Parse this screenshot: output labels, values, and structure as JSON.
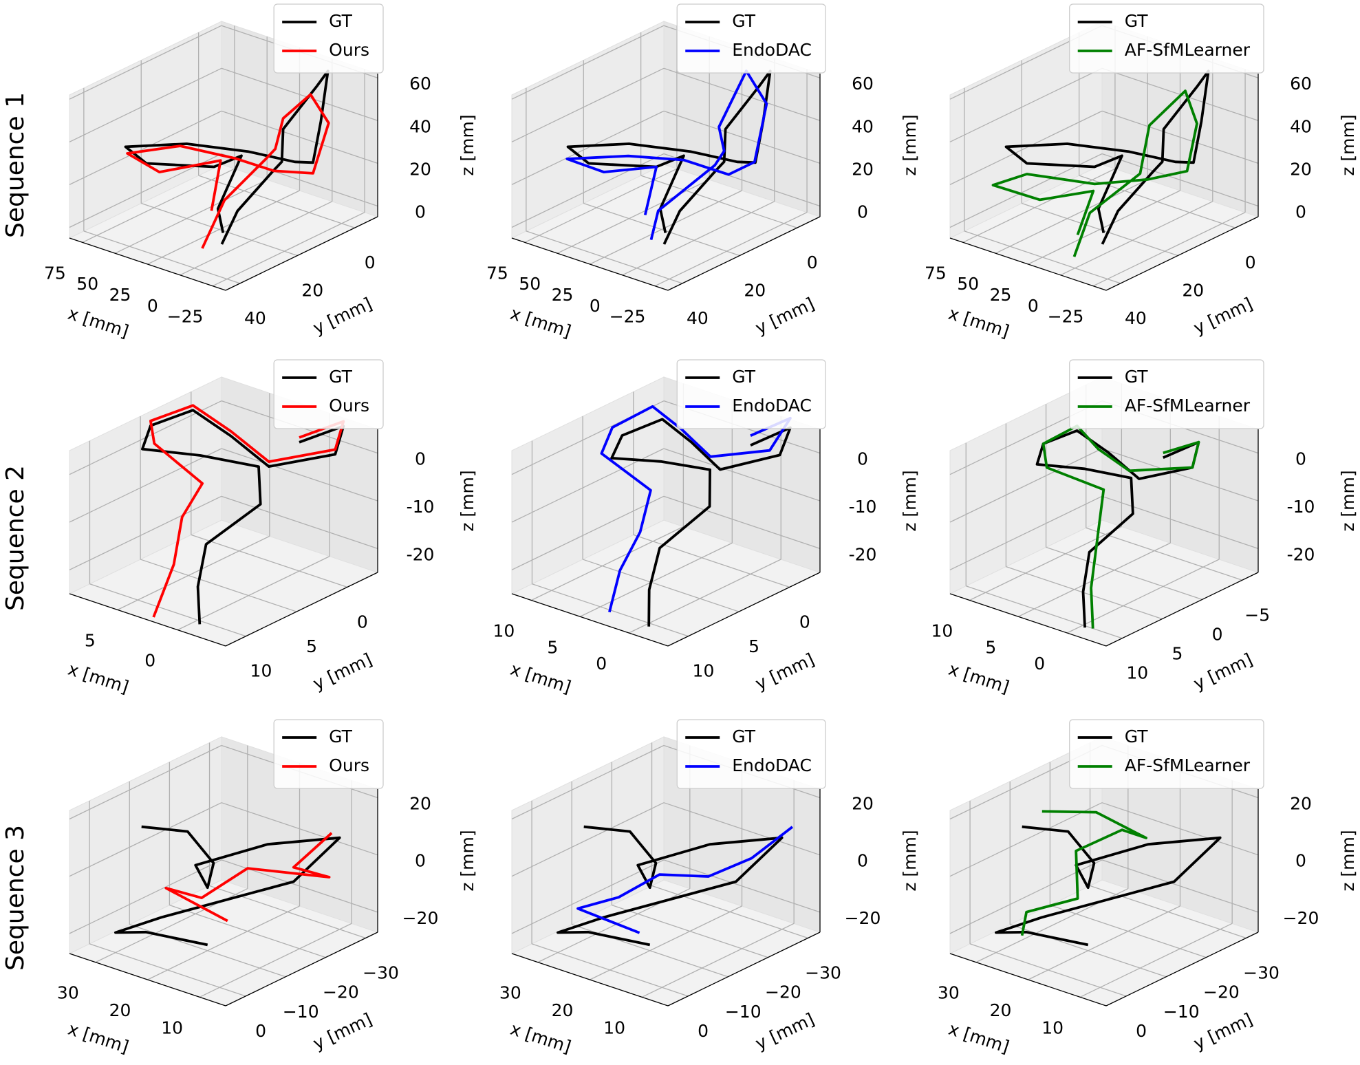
{
  "row_labels": [
    "Sequence 1",
    "Sequence 2",
    "Sequence 3"
  ],
  "chart_data": [
    {
      "type": "line3d",
      "xlabel": "x [mm]",
      "ylabel": "y [mm]",
      "zlabel": "z [mm]",
      "xlim": [
        -35,
        85
      ],
      "ylim": [
        -8,
        45
      ],
      "zlim": [
        -5,
        62
      ],
      "xticks": [
        75,
        50,
        25,
        0,
        {
          "value": -25,
          "label": "−25"
        }
      ],
      "yticks": [
        40,
        20,
        0
      ],
      "zticks": [
        0,
        20,
        40,
        60
      ],
      "series": [
        {
          "name": "GT",
          "color": "#000000",
          "x": [
            -10,
            0,
            -5,
            10,
            20,
            5,
            -10,
            -20,
            -25,
            0,
            25,
            50,
            75,
            70,
            40,
            30,
            15,
            0
          ],
          "y": [
            35,
            25,
            15,
            5,
            0,
            -5,
            -2,
            5,
            10,
            5,
            10,
            20,
            30,
            25,
            15,
            10,
            25,
            30
          ],
          "z": [
            5,
            12,
            25,
            20,
            30,
            50,
            62,
            45,
            30,
            22,
            25,
            30,
            30,
            20,
            18,
            22,
            10,
            5
          ]
        },
        {
          "name": "Ours",
          "color": "#ff0000",
          "x": [
            5,
            10,
            0,
            15,
            20,
            10,
            -15,
            -25,
            5,
            30,
            55,
            78,
            60,
            35,
            20
          ],
          "y": [
            35,
            25,
            15,
            5,
            0,
            -5,
            0,
            10,
            10,
            12,
            20,
            28,
            25,
            15,
            25
          ],
          "z": [
            0,
            15,
            30,
            25,
            35,
            45,
            40,
            25,
            20,
            22,
            28,
            25,
            18,
            22,
            8
          ]
        }
      ]
    },
    {
      "type": "line3d",
      "xlabel": "x [mm]",
      "ylabel": "y [mm]",
      "zlabel": "z [mm]",
      "xlim": [
        -35,
        85
      ],
      "ylim": [
        -8,
        45
      ],
      "zlim": [
        -5,
        62
      ],
      "xticks": [
        75,
        50,
        25,
        0,
        {
          "value": -25,
          "label": "−25"
        }
      ],
      "yticks": [
        40,
        20,
        0
      ],
      "zticks": [
        0,
        20,
        40,
        60
      ],
      "series": [
        {
          "name": "GT",
          "color": "#000000",
          "x": [
            -10,
            0,
            -5,
            10,
            20,
            5,
            -10,
            -20,
            -25,
            0,
            25,
            50,
            75,
            70,
            40,
            30,
            15,
            0
          ],
          "y": [
            35,
            25,
            15,
            5,
            0,
            -5,
            -2,
            5,
            10,
            5,
            10,
            20,
            30,
            25,
            15,
            10,
            25,
            30
          ],
          "z": [
            5,
            12,
            25,
            20,
            30,
            50,
            62,
            45,
            30,
            22,
            25,
            30,
            30,
            20,
            18,
            22,
            10,
            5
          ]
        },
        {
          "name": "EndoDAC",
          "color": "#0000ff",
          "x": [
            0,
            10,
            -5,
            10,
            25,
            15,
            -5,
            -20,
            0,
            30,
            55,
            80,
            65,
            40,
            20
          ],
          "y": [
            35,
            28,
            15,
            5,
            0,
            -5,
            -3,
            8,
            8,
            10,
            18,
            28,
            22,
            15,
            28
          ],
          "z": [
            5,
            12,
            28,
            25,
            30,
            55,
            45,
            28,
            18,
            20,
            22,
            22,
            15,
            18,
            8
          ]
        }
      ]
    },
    {
      "type": "line3d",
      "xlabel": "x [mm]",
      "ylabel": "y [mm]",
      "zlabel": "z [mm]",
      "xlim": [
        -35,
        85
      ],
      "ylim": [
        -8,
        45
      ],
      "zlim": [
        -5,
        62
      ],
      "xticks": [
        75,
        50,
        25,
        0,
        {
          "value": -25,
          "label": "−25"
        }
      ],
      "yticks": [
        40,
        20,
        0
      ],
      "zticks": [
        0,
        20,
        40,
        60
      ],
      "series": [
        {
          "name": "GT",
          "color": "#000000",
          "x": [
            -10,
            0,
            -5,
            10,
            20,
            5,
            -10,
            -20,
            -25,
            0,
            25,
            50,
            75,
            70,
            40,
            30,
            15,
            0
          ],
          "y": [
            35,
            25,
            15,
            5,
            0,
            -5,
            -2,
            5,
            10,
            5,
            10,
            20,
            30,
            25,
            15,
            10,
            25,
            30
          ],
          "z": [
            5,
            12,
            25,
            20,
            30,
            50,
            62,
            45,
            30,
            22,
            25,
            30,
            30,
            20,
            18,
            22,
            10,
            5
          ]
        },
        {
          "name": "AF-SfMLearner",
          "color": "#008000",
          "x": [
            5,
            15,
            5,
            20,
            10,
            -10,
            -20,
            10,
            40,
            70,
            85,
            60,
            30,
            20
          ],
          "y": [
            38,
            28,
            15,
            5,
            -3,
            2,
            10,
            10,
            15,
            25,
            30,
            25,
            20,
            30
          ],
          "z": [
            -2,
            10,
            22,
            35,
            48,
            40,
            25,
            15,
            10,
            15,
            10,
            5,
            12,
            0
          ]
        }
      ]
    },
    {
      "type": "line3d",
      "xlabel": "x [mm]",
      "ylabel": "y [mm]",
      "zlabel": "z [mm]",
      "xlim": [
        -4,
        9
      ],
      "ylim": [
        -3,
        12
      ],
      "zlim": [
        -25,
        5
      ],
      "xticks": [
        5,
        0
      ],
      "yticks": [
        10,
        5,
        0
      ],
      "zticks": [
        0,
        -10,
        -20
      ],
      "series": [
        {
          "name": "GT",
          "color": "#000000",
          "x": [
            0,
            -2,
            -3,
            0,
            4,
            8,
            9,
            8,
            4,
            0,
            -1,
            1,
            0,
            -1
          ],
          "y": [
            0,
            -2,
            0,
            3,
            2,
            1,
            4,
            6,
            5,
            4,
            5,
            8,
            10,
            11
          ],
          "z": [
            2,
            5,
            2,
            0,
            2,
            3,
            2,
            0,
            1,
            1,
            -5,
            -12,
            -18,
            -24
          ]
        },
        {
          "name": "Ours",
          "color": "#ff0000",
          "x": [
            0,
            -2,
            -3,
            0,
            4,
            8,
            9,
            7,
            3,
            3,
            2,
            2
          ],
          "y": [
            0,
            -2,
            0,
            3,
            2,
            1,
            4,
            6,
            6,
            8,
            10,
            12
          ],
          "z": [
            3,
            6,
            3,
            1,
            3,
            4,
            3,
            2,
            -3,
            -8,
            -15,
            -24
          ]
        }
      ]
    },
    {
      "type": "line3d",
      "xlabel": "x [mm]",
      "ylabel": "y [mm]",
      "zlabel": "z [mm]",
      "xlim": [
        -4,
        12
      ],
      "ylim": [
        -3,
        12
      ],
      "zlim": [
        -25,
        5
      ],
      "xticks": [
        10,
        5,
        0
      ],
      "yticks": [
        10,
        5,
        0
      ],
      "zticks": [
        0,
        -10,
        -20
      ],
      "series": [
        {
          "name": "GT",
          "color": "#000000",
          "x": [
            0,
            -2,
            -3,
            0,
            4,
            8,
            9,
            8,
            4,
            0,
            -1,
            1,
            0,
            -1
          ],
          "y": [
            0,
            -2,
            0,
            3,
            2,
            1,
            4,
            6,
            5,
            4,
            5,
            8,
            10,
            11
          ],
          "z": [
            2,
            5,
            2,
            0,
            2,
            3,
            2,
            0,
            1,
            1,
            -5,
            -12,
            -18,
            -24
          ]
        },
        {
          "name": "EndoDAC",
          "color": "#0000ff",
          "x": [
            0,
            -2,
            -3,
            1,
            5,
            9,
            10,
            8,
            4,
            3,
            3,
            2
          ],
          "y": [
            0,
            -2,
            1,
            3,
            2,
            1,
            4,
            7,
            6,
            8,
            10,
            12
          ],
          "z": [
            4,
            7,
            4,
            2,
            4,
            5,
            3,
            2,
            -4,
            -10,
            -16,
            -22
          ]
        }
      ]
    },
    {
      "type": "line3d",
      "xlabel": "x [mm]",
      "ylabel": "y [mm]",
      "zlabel": "z [mm]",
      "xlim": [
        -4,
        12
      ],
      "ylim": [
        -7,
        12
      ],
      "zlim": [
        -25,
        5
      ],
      "xticks": [
        10,
        5,
        0
      ],
      "yticks": [
        10,
        5,
        0,
        {
          "value": -5,
          "label": "−5"
        }
      ],
      "zticks": [
        0,
        -10,
        -20
      ],
      "series": [
        {
          "name": "GT",
          "color": "#000000",
          "x": [
            0,
            -2,
            -3,
            0,
            4,
            8,
            9,
            8,
            4,
            0,
            -1,
            1,
            0,
            -1
          ],
          "y": [
            0,
            -2,
            0,
            3,
            2,
            1,
            4,
            6,
            5,
            4,
            5,
            8,
            10,
            11
          ],
          "z": [
            2,
            5,
            2,
            0,
            2,
            3,
            2,
            0,
            1,
            1,
            -5,
            -12,
            -18,
            -24
          ]
        },
        {
          "name": "AF-SfMLearner",
          "color": "#008000",
          "x": [
            0,
            -2,
            -3,
            1,
            5,
            8,
            9,
            7,
            2,
            1,
            0,
            -1
          ],
          "y": [
            0,
            -2,
            0,
            3,
            2,
            1,
            4,
            6,
            5,
            7,
            9,
            10
          ],
          "z": [
            3,
            5,
            2,
            1,
            2,
            4,
            2,
            0,
            -2,
            -10,
            -18,
            -25
          ]
        }
      ]
    },
    {
      "type": "line3d",
      "xlabel": "x [mm]",
      "ylabel": "y [mm]",
      "zlabel": "z [mm]",
      "xlim": [
        5,
        35
      ],
      "ylim": [
        -33,
        5
      ],
      "zlim": [
        -27,
        23
      ],
      "xticks": [
        30,
        20,
        10
      ],
      "yticks": [
        0,
        {
          "value": -10,
          "label": "−10"
        },
        {
          "value": -20,
          "label": "−20"
        },
        {
          "value": -30,
          "label": "−30"
        }
      ],
      "zticks": [
        20,
        0,
        {
          "value": -20,
          "label": "−20"
        }
      ],
      "series": [
        {
          "name": "GT",
          "color": "#000000",
          "x": [
            25,
            20,
            15,
            20,
            30,
            20,
            10,
            15,
            25,
            30,
            28,
            20
          ],
          "y": [
            0,
            -5,
            -5,
            -10,
            -20,
            -25,
            -30,
            -25,
            -5,
            0,
            -5,
            -10
          ],
          "z": [
            20,
            18,
            10,
            -5,
            -10,
            0,
            5,
            -10,
            -15,
            -20,
            -22,
            -25
          ]
        },
        {
          "name": "Ours",
          "color": "#ff0000",
          "x": [
            10,
            15,
            12,
            20,
            25,
            28,
            20
          ],
          "y": [
            -28,
            -25,
            -30,
            -20,
            -15,
            -10,
            -15
          ],
          "z": [
            8,
            -5,
            -10,
            -5,
            -15,
            -10,
            -20
          ]
        }
      ]
    },
    {
      "type": "line3d",
      "xlabel": "x [mm]",
      "ylabel": "y [mm]",
      "zlabel": "z [mm]",
      "xlim": [
        5,
        35
      ],
      "ylim": [
        -33,
        5
      ],
      "zlim": [
        -27,
        23
      ],
      "xticks": [
        30,
        20,
        10
      ],
      "yticks": [
        0,
        {
          "value": -10,
          "label": "−10"
        },
        {
          "value": -20,
          "label": "−20"
        },
        {
          "value": -30,
          "label": "−30"
        }
      ],
      "zticks": [
        20,
        0,
        {
          "value": -20,
          "label": "−20"
        }
      ],
      "series": [
        {
          "name": "GT",
          "color": "#000000",
          "x": [
            25,
            20,
            15,
            20,
            30,
            20,
            10,
            15,
            25,
            30,
            28,
            20
          ],
          "y": [
            0,
            -5,
            -5,
            -10,
            -20,
            -25,
            -30,
            -25,
            -5,
            0,
            -5,
            -10
          ],
          "z": [
            20,
            18,
            10,
            -5,
            -10,
            0,
            5,
            -10,
            -15,
            -20,
            -22,
            -25
          ]
        },
        {
          "name": "EndoDAC",
          "color": "#0000ff",
          "x": [
            8,
            12,
            18,
            22,
            26,
            30,
            22
          ],
          "y": [
            -30,
            -25,
            -22,
            -15,
            -10,
            -5,
            -10
          ],
          "z": [
            10,
            0,
            -8,
            -5,
            -12,
            -15,
            -22
          ]
        }
      ]
    },
    {
      "type": "line3d",
      "xlabel": "x [mm]",
      "ylabel": "y [mm]",
      "zlabel": "z [mm]",
      "xlim": [
        5,
        35
      ],
      "ylim": [
        -33,
        5
      ],
      "zlim": [
        -27,
        23
      ],
      "xticks": [
        30,
        20,
        10
      ],
      "yticks": [
        0,
        {
          "value": -10,
          "label": "−10"
        },
        {
          "value": -20,
          "label": "−20"
        },
        {
          "value": -30,
          "label": "−30"
        }
      ],
      "zticks": [
        20,
        0,
        {
          "value": -20,
          "label": "−20"
        }
      ],
      "series": [
        {
          "name": "GT",
          "color": "#000000",
          "x": [
            25,
            20,
            15,
            20,
            30,
            20,
            10,
            15,
            25,
            30,
            28,
            20
          ],
          "y": [
            0,
            -5,
            -5,
            -10,
            -20,
            -25,
            -30,
            -25,
            -5,
            0,
            -5,
            -10
          ],
          "z": [
            20,
            18,
            10,
            -5,
            -10,
            0,
            5,
            -10,
            -15,
            -20,
            -22,
            -25
          ]
        },
        {
          "name": "AF-SfMLearner",
          "color": "#008000",
          "x": [
            25,
            20,
            15,
            25,
            30,
            22,
            28,
            25
          ],
          "y": [
            -5,
            -12,
            -18,
            -25,
            -20,
            -10,
            -5,
            0
          ],
          "z": [
            22,
            20,
            10,
            2,
            -5,
            -10,
            -15,
            -18
          ]
        }
      ]
    }
  ]
}
